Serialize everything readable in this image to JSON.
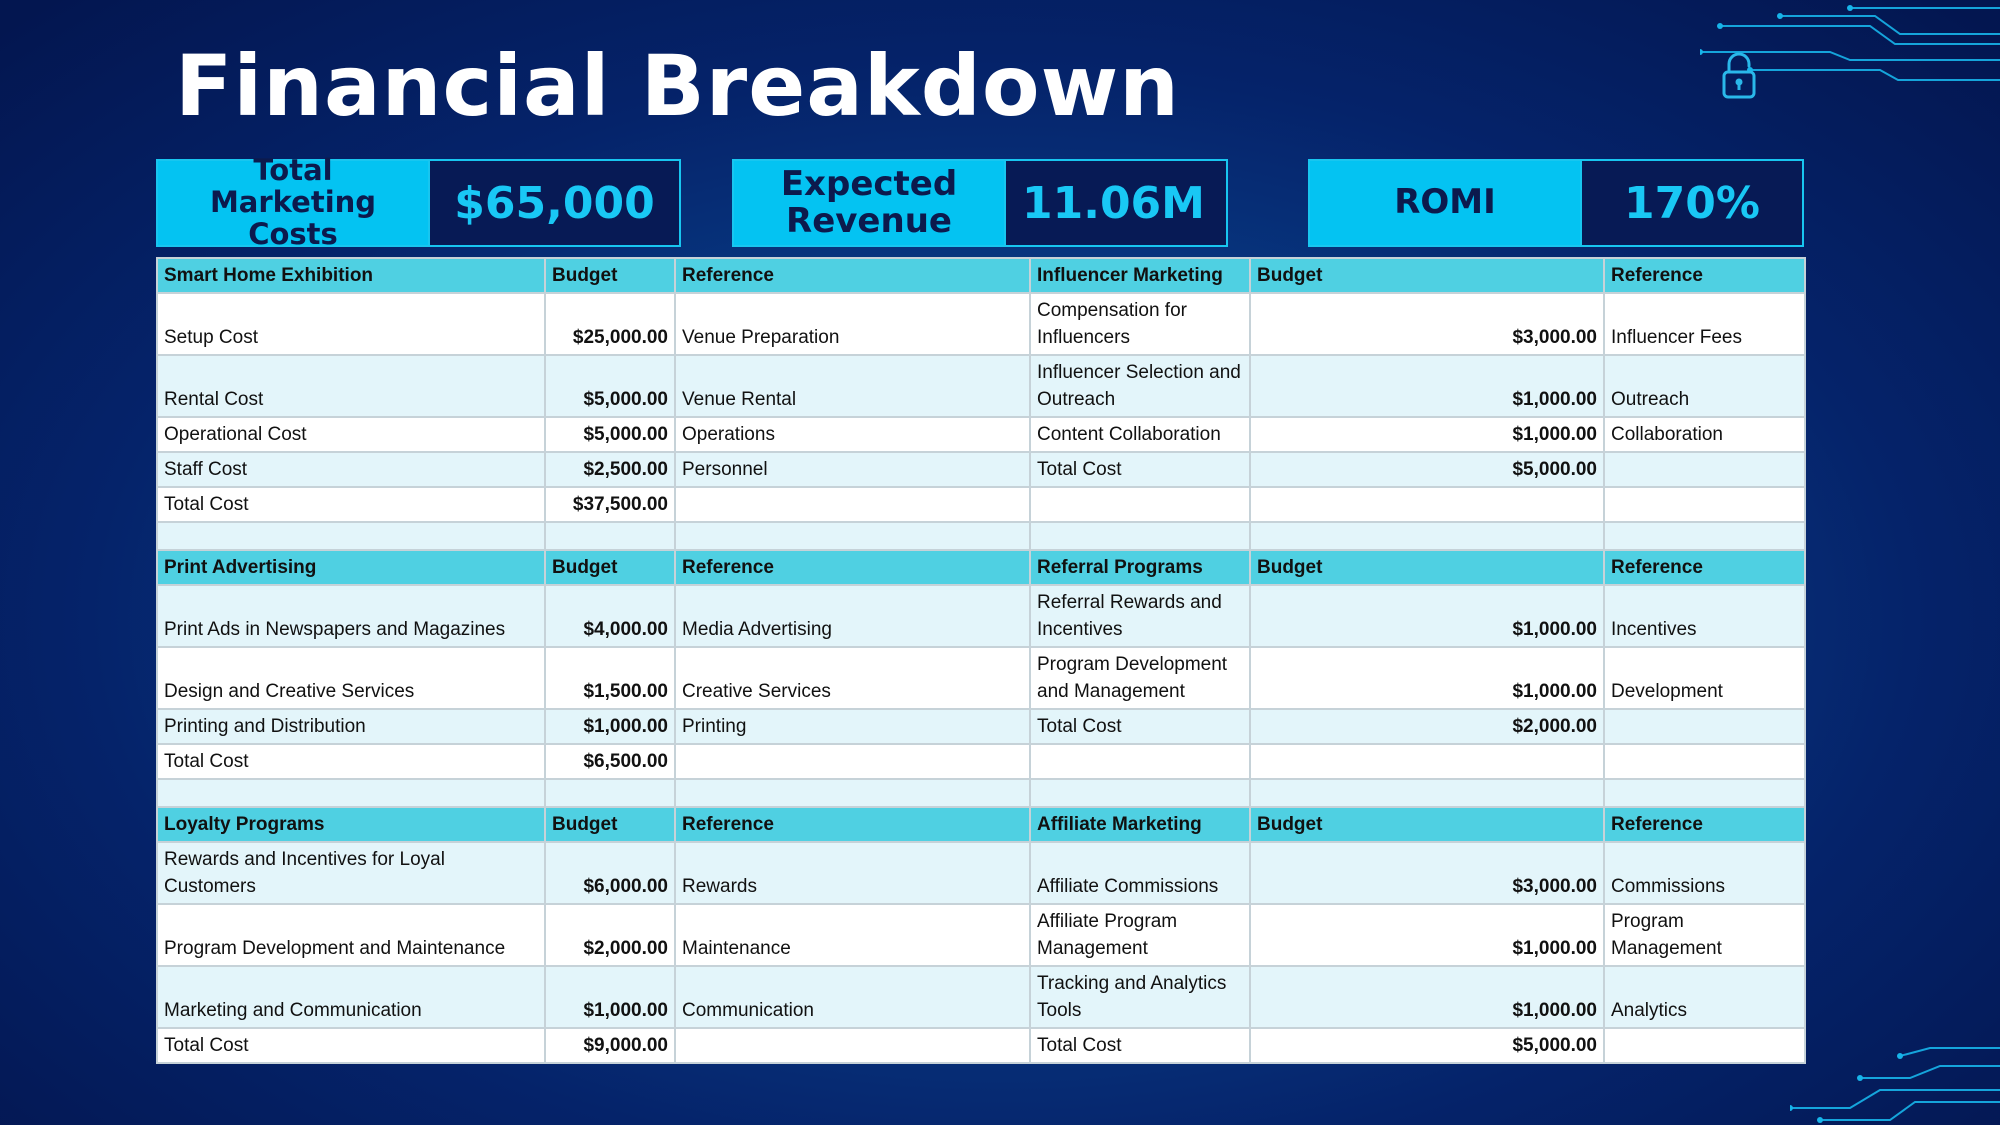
{
  "title": "Financial Breakdown",
  "kpis": {
    "marketing": {
      "label": "Total Marketing Costs",
      "value": "$65,000"
    },
    "revenue": {
      "label": "Expected Revenue",
      "value": "11.06M"
    },
    "romi": {
      "label": "ROMI",
      "value": "170%"
    }
  },
  "sections": [
    {
      "left": {
        "header": [
          "Smart Home Exhibition",
          "Budget",
          "Reference"
        ],
        "rows": [
          [
            "Setup Cost",
            "$25,000.00",
            "Venue Preparation"
          ],
          [
            "Rental Cost",
            "$5,000.00",
            "Venue Rental"
          ],
          [
            "Operational Cost",
            "$5,000.00",
            "Operations"
          ],
          [
            "Staff Cost",
            "$2,500.00",
            "Personnel"
          ],
          [
            "Total Cost",
            "$37,500.00",
            ""
          ]
        ]
      },
      "right": {
        "header": [
          "Influencer Marketing",
          "Budget",
          "Reference"
        ],
        "rows": [
          [
            "Compensation for Influencers",
            "$3,000.00",
            "Influencer Fees"
          ],
          [
            "Influencer Selection and Outreach",
            "$1,000.00",
            "Outreach"
          ],
          [
            "Content Collaboration",
            "$1,000.00",
            "Collaboration"
          ],
          [
            "Total Cost",
            "$5,000.00",
            ""
          ],
          [
            "",
            "",
            ""
          ]
        ]
      }
    },
    {
      "left": {
        "header": [
          "Print Advertising",
          "Budget",
          "Reference"
        ],
        "rows": [
          [
            "Print Ads in Newspapers and Magazines",
            "$4,000.00",
            "Media Advertising"
          ],
          [
            "Design and Creative Services",
            "$1,500.00",
            "Creative Services"
          ],
          [
            "Printing and Distribution",
            "$1,000.00",
            "Printing"
          ],
          [
            "Total Cost",
            "$6,500.00",
            ""
          ]
        ]
      },
      "right": {
        "header": [
          "Referral Programs",
          "Budget",
          "Reference"
        ],
        "rows": [
          [
            "Referral Rewards and Incentives",
            "$1,000.00",
            "Incentives"
          ],
          [
            "Program Development and Management",
            "$1,000.00",
            "Development"
          ],
          [
            "Total Cost",
            "$2,000.00",
            ""
          ],
          [
            "",
            "",
            ""
          ]
        ]
      }
    },
    {
      "left": {
        "header": [
          "Loyalty Programs",
          "Budget",
          "Reference"
        ],
        "rows": [
          [
            "Rewards and Incentives for Loyal Customers",
            "$6,000.00",
            "Rewards"
          ],
          [
            "Program Development and Maintenance",
            "$2,000.00",
            "Maintenance"
          ],
          [
            "Marketing and Communication",
            "$1,000.00",
            "Communication"
          ],
          [
            "Total Cost",
            "$9,000.00",
            ""
          ]
        ]
      },
      "right": {
        "header": [
          "Affiliate Marketing",
          "Budget",
          "Reference"
        ],
        "rows": [
          [
            "Affiliate Commissions",
            "$3,000.00",
            "Commissions"
          ],
          [
            "Affiliate Program Management",
            "$1,000.00",
            "Program Management"
          ],
          [
            "Tracking and Analytics Tools",
            "$1,000.00",
            "Analytics"
          ],
          [
            "Total Cost",
            "$5,000.00",
            ""
          ]
        ]
      }
    }
  ]
}
